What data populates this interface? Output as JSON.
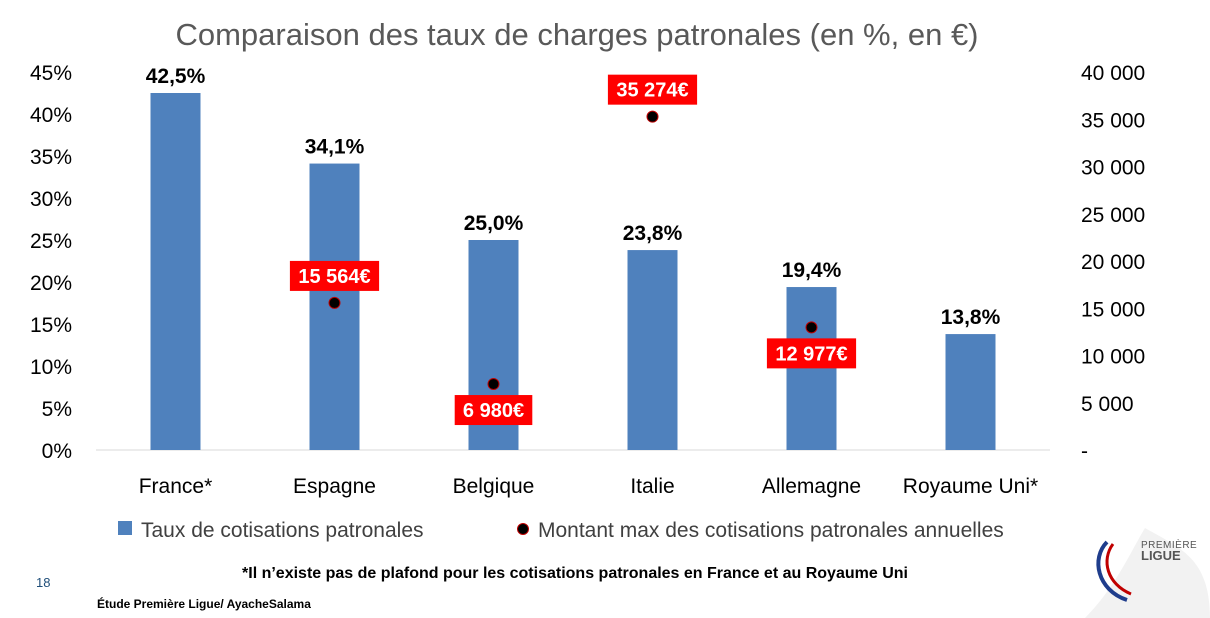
{
  "chart_data": {
    "type": "bar",
    "title": "Comparaison des taux de charges patronales (en %, en €)",
    "categories": [
      "France*",
      "Espagne",
      "Belgique",
      "Italie",
      "Allemagne",
      "Royaume Uni*"
    ],
    "series": [
      {
        "name": "Taux de cotisations patronales",
        "type": "bar",
        "axis": "left",
        "color": "#4f81bd",
        "values": [
          42.5,
          34.1,
          25.0,
          23.8,
          19.4,
          13.8
        ],
        "labels": [
          "42,5%",
          "34,1%",
          "25,0%",
          "23,8%",
          "19,4%",
          "13,8%"
        ]
      },
      {
        "name": "Montant max des cotisations patronales annuelles",
        "type": "scatter",
        "axis": "right",
        "color": "#000000",
        "values": [
          null,
          15564,
          6980,
          35274,
          12977,
          null
        ],
        "labels": [
          null,
          "15 564€",
          "6 980€",
          "35 274€",
          "12 977€",
          null
        ],
        "label_color": "#ff0000"
      }
    ],
    "ylim_left": [
      0,
      45
    ],
    "ylim_right": [
      0,
      40000
    ],
    "left_ticks": [
      "0%",
      "5%",
      "10%",
      "15%",
      "20%",
      "25%",
      "30%",
      "35%",
      "40%",
      "45%"
    ],
    "right_ticks": [
      "-",
      "5 000",
      "10 000",
      "15 000",
      "20 000",
      "25 000",
      "30 000",
      "35 000",
      "40 000"
    ],
    "grid": false,
    "legend_position": "bottom"
  },
  "footnote": "*Il n’existe pas de plafond pour les cotisations patronales en France et au Royaume Uni",
  "slide_number": "18",
  "source": "Étude Première Ligue/ AyacheSalama",
  "logo": {
    "line1": "PREMIÈRE",
    "line2": "LIGUE"
  }
}
